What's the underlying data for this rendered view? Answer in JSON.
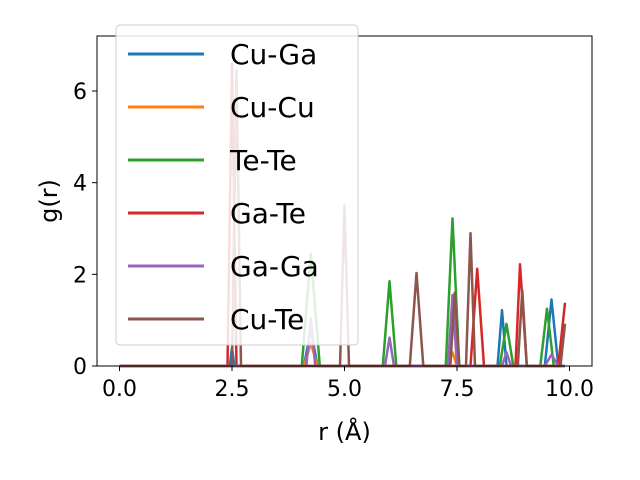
{
  "chart_data": {
    "type": "line",
    "xlabel": "r (Å)",
    "ylabel": "g(r)",
    "xlim": [
      -0.5,
      10.5
    ],
    "ylim": [
      0,
      7.2
    ],
    "xticks": [
      0.0,
      2.5,
      5.0,
      7.5,
      10.0
    ],
    "xtick_labels": [
      "0.0",
      "2.5",
      "5.0",
      "7.5",
      "10.0"
    ],
    "yticks": [
      0,
      2,
      4,
      6
    ],
    "ytick_labels": [
      "0",
      "2",
      "4",
      "6"
    ],
    "grid": false,
    "legend_position": "upper-left",
    "series": [
      {
        "name": "Cu-Ga",
        "color": "#1f77b4",
        "x": [
          0.0,
          2.45,
          2.5,
          2.55,
          4.1,
          4.25,
          4.4,
          8.4,
          8.5,
          8.6,
          9.45,
          9.6,
          9.75,
          9.9
        ],
        "y": [
          0,
          0,
          0.4,
          0,
          0,
          0.8,
          0,
          0,
          1.22,
          0,
          0,
          1.45,
          0,
          0
        ]
      },
      {
        "name": "Cu-Cu",
        "color": "#ff7f0e",
        "x": [
          0.0,
          4.1,
          4.25,
          4.4,
          7.3,
          7.4,
          7.5,
          9.9
        ],
        "y": [
          0,
          0,
          0.5,
          0,
          0,
          0.3,
          0,
          0
        ]
      },
      {
        "name": "Te-Te",
        "color": "#2ca02c",
        "x": [
          0.0,
          4.05,
          4.25,
          4.45,
          5.85,
          6.0,
          6.15,
          7.25,
          7.4,
          7.55,
          8.45,
          8.6,
          8.75,
          9.35,
          9.5,
          9.65,
          9.9
        ],
        "y": [
          0,
          0,
          2.45,
          0,
          0,
          1.85,
          0,
          0,
          3.22,
          0,
          0,
          0.92,
          0,
          0,
          1.25,
          0,
          0
        ]
      },
      {
        "name": "Ga-Te",
        "color": "#d62728",
        "x": [
          0.0,
          2.4,
          2.5,
          2.6,
          7.8,
          7.95,
          8.1,
          8.8,
          8.9,
          9.05,
          9.75,
          9.9
        ],
        "y": [
          0,
          0,
          6.6,
          0,
          0,
          2.12,
          0,
          0,
          2.22,
          0,
          0,
          1.38
        ]
      },
      {
        "name": "Ga-Ga",
        "color": "#9467bd",
        "x": [
          0.0,
          4.15,
          4.25,
          4.35,
          5.9,
          6.0,
          6.1,
          7.3,
          7.4,
          7.5,
          8.5,
          8.6,
          8.7,
          9.45,
          9.6,
          9.75,
          9.9
        ],
        "y": [
          0,
          0,
          1.05,
          0,
          0,
          0.62,
          0,
          0,
          1.55,
          0,
          0,
          0.3,
          0,
          0,
          0.25,
          0,
          0
        ]
      },
      {
        "name": "Cu-Te",
        "color": "#8c564b",
        "x": [
          0.0,
          2.5,
          2.6,
          2.7,
          4.9,
          5.0,
          5.1,
          6.45,
          6.6,
          6.75,
          7.35,
          7.45,
          7.55,
          7.7,
          7.8,
          7.9,
          8.85,
          8.95,
          9.05,
          9.8,
          9.9
        ],
        "y": [
          0,
          0,
          6.45,
          0,
          0,
          3.5,
          0,
          0,
          2.03,
          0,
          0,
          1.6,
          0,
          0,
          2.9,
          0,
          0,
          1.65,
          0,
          0,
          0.92
        ]
      }
    ]
  }
}
